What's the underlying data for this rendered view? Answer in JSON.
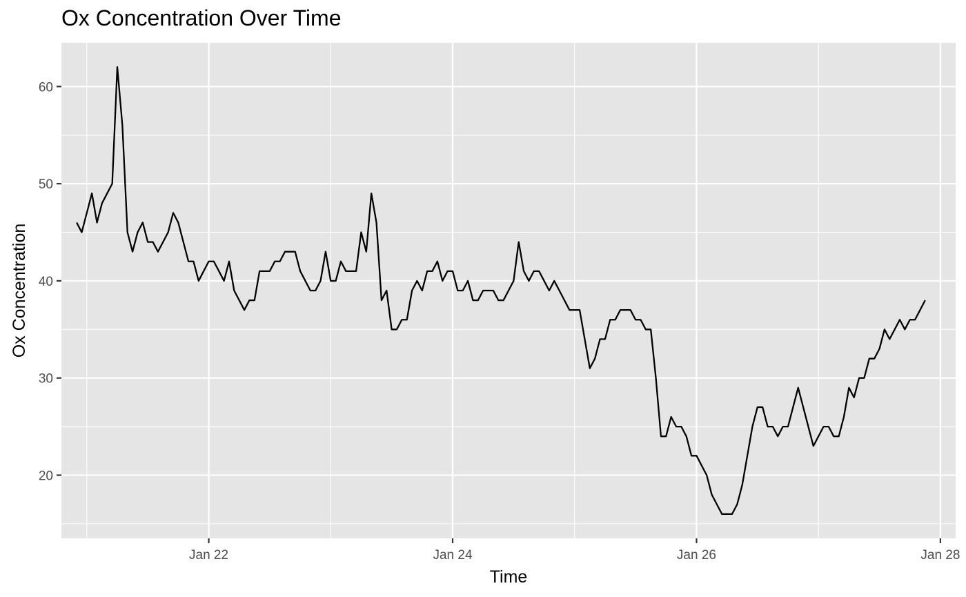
{
  "chart_data": {
    "type": "line",
    "title": "Ox Concentration Over Time",
    "xlabel": "Time",
    "ylabel": "Ox Concentration",
    "x_start": "2021-01-20T22:00",
    "x_step_hours": 1,
    "x_range": [
      "2021-01-20T19:00",
      "2021-01-28T03:00"
    ],
    "ylim": [
      13.5,
      64.5
    ],
    "y_ticks": [
      20,
      30,
      40,
      50,
      60
    ],
    "x_ticks": [
      {
        "label": "Jan 22",
        "value": "2021-01-22T00:00"
      },
      {
        "label": "Jan 24",
        "value": "2021-01-24T00:00"
      },
      {
        "label": "Jan 26",
        "value": "2021-01-26T00:00"
      },
      {
        "label": "Jan 28",
        "value": "2021-01-28T00:00"
      }
    ],
    "grid": true,
    "background": "#e5e5e5",
    "grid_color": "#ffffff",
    "line_color": "#000000",
    "series": [
      {
        "values": [
          46,
          45,
          47,
          49,
          46,
          48,
          49,
          50,
          62,
          56,
          45,
          43,
          45,
          46,
          44,
          44,
          43,
          44,
          45,
          47,
          46,
          44,
          42,
          42,
          40,
          41,
          42,
          42,
          41,
          40,
          42,
          39,
          38,
          37,
          38,
          38,
          41,
          41,
          41,
          42,
          42,
          43,
          43,
          43,
          41,
          40,
          39,
          39,
          40,
          43,
          40,
          40,
          42,
          41,
          41,
          41,
          45,
          43,
          49,
          46,
          38,
          39,
          35,
          35,
          36,
          36,
          39,
          40,
          39,
          41,
          41,
          42,
          40,
          41,
          41,
          39,
          39,
          40,
          38,
          38,
          39,
          39,
          39,
          38,
          38,
          39,
          40,
          44,
          41,
          40,
          41,
          41,
          40,
          39,
          40,
          39,
          38,
          37,
          37,
          37,
          34,
          31,
          32,
          34,
          34,
          36,
          36,
          37,
          37,
          37,
          36,
          36,
          35,
          35,
          30,
          24,
          24,
          26,
          25,
          25,
          24,
          22,
          22,
          21,
          20,
          18,
          17,
          16,
          16,
          16,
          17,
          19,
          22,
          25,
          27,
          27,
          25,
          25,
          24,
          25,
          25,
          27,
          29,
          27,
          25,
          23,
          24,
          25,
          25,
          24,
          24,
          26,
          29,
          28,
          30,
          30,
          32,
          32,
          33,
          35,
          34,
          35,
          36,
          35,
          36,
          36,
          37,
          38
        ]
      }
    ]
  }
}
